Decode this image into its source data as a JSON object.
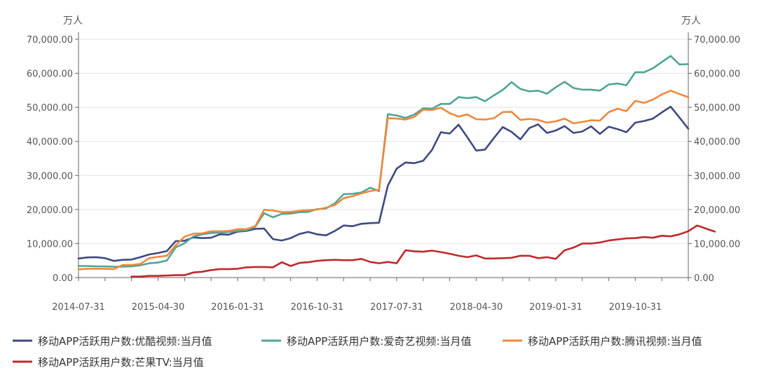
{
  "chart_data": {
    "type": "line",
    "left_unit": "万人",
    "right_unit": "万人",
    "ylim": [
      0,
      70000
    ],
    "y_ticks": [
      "0.00",
      "10,000.00",
      "20,000.00",
      "30,000.00",
      "40,000.00",
      "50,000.00",
      "60,000.00",
      "70,000.00"
    ],
    "y_tick_values": [
      0,
      10000,
      20000,
      30000,
      40000,
      50000,
      60000,
      70000
    ],
    "x_ticks": [
      "2014-07-31",
      "2015-04-30",
      "2016-01-31",
      "2016-10-31",
      "2017-07-31",
      "2018-04-30",
      "2019-01-31",
      "2019-10-31"
    ],
    "x_start": "2014-07-31",
    "x_end": "2020-04-30",
    "legend_position": "bottom-left",
    "grid": true,
    "series": [
      {
        "name": "移动APP活跃用户数:优酷视频:当月值",
        "color": "#3d4a7f",
        "start": "2014-07-31",
        "values": [
          5600,
          5900,
          6000,
          5700,
          4900,
          5200,
          5300,
          6000,
          6800,
          7200,
          7800,
          10700,
          10800,
          11800,
          11600,
          11700,
          12700,
          12600,
          13500,
          13700,
          14300,
          14400,
          11300,
          10900,
          11600,
          12800,
          13400,
          12700,
          12400,
          13700,
          15300,
          15100,
          15800,
          16000,
          16100,
          27000,
          32000,
          33800,
          33600,
          34300,
          37500,
          42700,
          42300,
          44900,
          41200,
          37300,
          37600,
          41000,
          44200,
          42800,
          40600,
          43900,
          45000,
          42500,
          43200,
          44500,
          42500,
          42900,
          44400,
          42200,
          44300,
          43600,
          42700,
          45500,
          46000,
          46700,
          48500,
          50200,
          47000,
          43700
        ]
      },
      {
        "name": "移动APP活跃用户数:爱奇艺视频:当月值",
        "color": "#4fa594",
        "start": "2014-07-31",
        "values": [
          3400,
          3400,
          3300,
          3300,
          3200,
          3200,
          3300,
          3600,
          4200,
          4400,
          5000,
          8900,
          10100,
          12100,
          12700,
          13100,
          13200,
          13400,
          13700,
          13900,
          14900,
          18900,
          17700,
          18700,
          18800,
          19200,
          19300,
          20100,
          20300,
          21800,
          24500,
          24600,
          25000,
          26400,
          25400,
          48000,
          47600,
          46900,
          47900,
          49700,
          49600,
          51000,
          51000,
          53000,
          52700,
          53000,
          51800,
          53500,
          55100,
          57400,
          55400,
          54700,
          54900,
          54000,
          55900,
          57500,
          55700,
          55200,
          55200,
          54900,
          56700,
          57000,
          56500,
          60300,
          60300,
          61500,
          63300,
          65100,
          62600,
          62700
        ]
      },
      {
        "name": "移动APP活跃用户数:腾讯视频:当月值",
        "color": "#f0883c",
        "start": "2014-07-31",
        "values": [
          2400,
          2600,
          2600,
          2600,
          2500,
          3700,
          3700,
          4000,
          5700,
          6100,
          6400,
          9500,
          12000,
          12900,
          13000,
          13600,
          13600,
          13700,
          14200,
          14200,
          15100,
          19900,
          19700,
          19200,
          19300,
          19600,
          19800,
          20000,
          20500,
          21300,
          23300,
          23900,
          24700,
          25400,
          25800,
          46800,
          46700,
          46400,
          47200,
          49300,
          49200,
          49900,
          48300,
          47300,
          47900,
          46500,
          46400,
          46800,
          48600,
          48700,
          46300,
          46600,
          46300,
          45500,
          45900,
          46700,
          45300,
          45700,
          46200,
          46100,
          48600,
          49600,
          48900,
          51900,
          51300,
          52300,
          53800,
          54900,
          53900,
          53000
        ]
      },
      {
        "name": "移动APP活跃用户数:芒果TV:当月值",
        "color": "#c0282d",
        "start": "2015-01-31",
        "values": [
          300,
          300,
          500,
          500,
          600,
          700,
          700,
          1500,
          1700,
          2200,
          2500,
          2500,
          2600,
          3000,
          3100,
          3100,
          3000,
          4500,
          3400,
          4300,
          4500,
          4900,
          5100,
          5200,
          5100,
          5100,
          5500,
          4600,
          4200,
          4600,
          4200,
          8000,
          7700,
          7600,
          7900,
          7500,
          7000,
          6400,
          6000,
          6500,
          5600,
          5600,
          5700,
          5800,
          6400,
          6400,
          5700,
          6000,
          5500,
          8000,
          8800,
          10000,
          10000,
          10300,
          10900,
          11200,
          11500,
          11600,
          11900,
          11700,
          12300,
          12100,
          12700,
          13600,
          15300,
          14400,
          13500
        ]
      }
    ]
  }
}
